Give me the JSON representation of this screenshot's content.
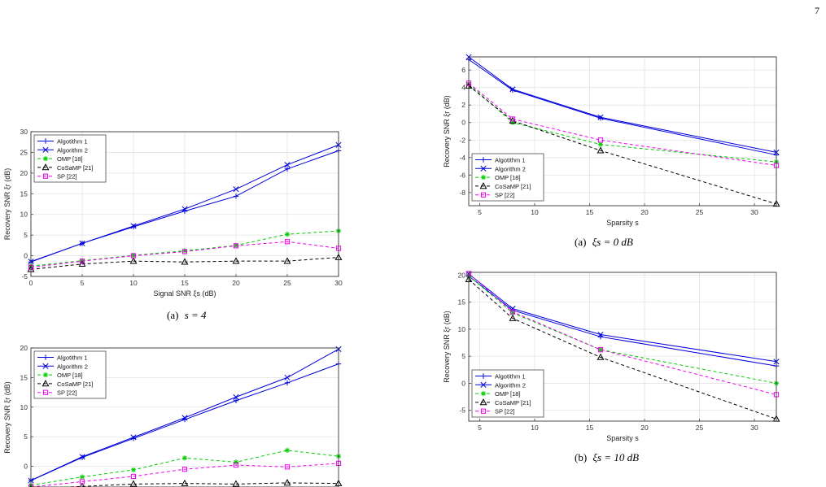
{
  "page_number": "7",
  "chart_data": [
    {
      "id": "a_left",
      "type": "line",
      "xlabel": "Signal SNR ξs (dB)",
      "ylabel": "Recovery SNR ξr (dB)",
      "xlim": [
        0,
        30
      ],
      "ylim": [
        -5,
        30
      ],
      "xticks": [
        0,
        5,
        10,
        15,
        20,
        25,
        30
      ],
      "yticks": [
        -5,
        0,
        5,
        10,
        15,
        20,
        25,
        30
      ],
      "grid": true,
      "legend_position": "top-left",
      "caption_label": "(a)",
      "caption_math": "s = 4",
      "x": [
        0,
        5,
        10,
        15,
        20,
        25,
        30
      ],
      "series": [
        {
          "name": "Algotithm 1",
          "color": "#0000dd",
          "dash": "solid",
          "marker": "plus",
          "values": [
            -1.5,
            3.0,
            7.0,
            10.8,
            14.4,
            21.0,
            25.4
          ]
        },
        {
          "name": "Algorithm 2",
          "color": "#0000dd",
          "dash": "solid",
          "marker": "x",
          "values": [
            -1.4,
            3.0,
            7.2,
            11.3,
            16.1,
            22.0,
            26.8
          ]
        },
        {
          "name": "OMP [18]",
          "color": "#00cc00",
          "dash": "dashed",
          "marker": "star",
          "values": [
            -2.5,
            -1.2,
            0.1,
            1.2,
            2.5,
            5.2,
            6.0
          ]
        },
        {
          "name": "CoSaMP [21]",
          "color": "#000000",
          "dash": "dashed",
          "marker": "triangle",
          "values": [
            -3.3,
            -2.0,
            -1.3,
            -1.5,
            -1.3,
            -1.3,
            -0.4
          ]
        },
        {
          "name": "SP [22]",
          "color": "#ee00ee",
          "dash": "dashed",
          "marker": "square",
          "values": [
            -2.8,
            -1.3,
            0.0,
            1.0,
            2.4,
            3.4,
            1.8
          ]
        }
      ]
    },
    {
      "id": "b_left",
      "type": "line",
      "xlabel": "",
      "ylabel": "Recovery SNR ξr (dB)",
      "xlim": [
        0,
        30
      ],
      "ylim": [
        -3.5,
        20
      ],
      "xticks": [],
      "yticks": [
        0,
        5,
        10,
        15,
        20
      ],
      "grid": true,
      "legend_position": "top-left",
      "caption_label": "",
      "caption_math": "",
      "x": [
        0,
        5,
        10,
        15,
        20,
        25,
        30
      ],
      "series": [
        {
          "name": "Algotithm 1",
          "color": "#0000dd",
          "dash": "solid",
          "marker": "plus",
          "values": [
            -2.4,
            1.5,
            4.7,
            7.9,
            11.1,
            14.1,
            17.3
          ]
        },
        {
          "name": "Algorithm 2",
          "color": "#0000dd",
          "dash": "solid",
          "marker": "x",
          "values": [
            -2.4,
            1.6,
            4.9,
            8.2,
            11.7,
            15.0,
            19.8
          ]
        },
        {
          "name": "OMP [18]",
          "color": "#00cc00",
          "dash": "dashed",
          "marker": "star",
          "values": [
            -3.2,
            -1.8,
            -0.6,
            1.4,
            0.7,
            2.7,
            1.7
          ]
        },
        {
          "name": "CoSaMP [21]",
          "color": "#000000",
          "dash": "dashed",
          "marker": "triangle",
          "values": [
            -3.8,
            -3.4,
            -3.0,
            -2.9,
            -3.0,
            -2.8,
            -2.9
          ]
        },
        {
          "name": "SP [22]",
          "color": "#ee00ee",
          "dash": "dashed",
          "marker": "square",
          "values": [
            -3.5,
            -2.6,
            -1.7,
            -0.5,
            0.2,
            -0.1,
            0.5
          ]
        }
      ]
    },
    {
      "id": "a_right",
      "type": "line",
      "xlabel": "Sparsity s",
      "ylabel": "Recovery SNR ξr (dB)",
      "xlim": [
        4,
        32
      ],
      "ylim": [
        -9.5,
        7.5
      ],
      "xticks": [
        5,
        10,
        15,
        20,
        25,
        30
      ],
      "yticks": [
        -8,
        -6,
        -4,
        -2,
        0,
        2,
        4,
        6
      ],
      "grid": true,
      "legend_position": "bottom-left",
      "caption_label": "(a)",
      "caption_math": "ξs = 0 dB",
      "x": [
        4,
        8,
        16,
        32
      ],
      "series": [
        {
          "name": "Algotithm 1",
          "color": "#0000dd",
          "dash": "solid",
          "marker": "plus",
          "values": [
            7.2,
            3.7,
            0.5,
            -3.7
          ]
        },
        {
          "name": "Algorithm 2",
          "color": "#0000dd",
          "dash": "solid",
          "marker": "x",
          "values": [
            7.5,
            3.8,
            0.6,
            -3.4
          ]
        },
        {
          "name": "OMP [18]",
          "color": "#00cc00",
          "dash": "dashed",
          "marker": "star",
          "values": [
            4.4,
            0.0,
            -2.5,
            -4.5
          ]
        },
        {
          "name": "CoSaMP [21]",
          "color": "#000000",
          "dash": "dashed",
          "marker": "triangle",
          "values": [
            4.2,
            0.2,
            -3.2,
            -9.3
          ]
        },
        {
          "name": "SP [22]",
          "color": "#ee00ee",
          "dash": "dashed",
          "marker": "square",
          "values": [
            4.5,
            0.4,
            -2.0,
            -4.9
          ]
        }
      ]
    },
    {
      "id": "b_right",
      "type": "line",
      "xlabel": "Sparsity s",
      "ylabel": "Recovery SNR ξr (dB)",
      "xlim": [
        4,
        32
      ],
      "ylim": [
        -7,
        20.5
      ],
      "xticks": [
        5,
        10,
        15,
        20,
        25,
        30
      ],
      "yticks": [
        -5,
        0,
        5,
        10,
        15,
        20
      ],
      "grid": true,
      "legend_position": "bottom-left",
      "caption_label": "(b)",
      "caption_math": "ξs = 10 dB",
      "x": [
        4,
        8,
        16,
        32
      ],
      "series": [
        {
          "name": "Algotithm 1",
          "color": "#0000dd",
          "dash": "solid",
          "marker": "plus",
          "values": [
            19.8,
            13.5,
            8.6,
            3.2
          ]
        },
        {
          "name": "Algorithm 2",
          "color": "#0000dd",
          "dash": "solid",
          "marker": "x",
          "values": [
            20.2,
            13.8,
            9.0,
            4.0
          ]
        },
        {
          "name": "OMP [18]",
          "color": "#00cc00",
          "dash": "dashed",
          "marker": "star",
          "values": [
            19.9,
            13.0,
            6.2,
            0.0
          ]
        },
        {
          "name": "CoSaMP [21]",
          "color": "#000000",
          "dash": "dashed",
          "marker": "triangle",
          "values": [
            19.2,
            12.0,
            4.8,
            -6.6
          ]
        },
        {
          "name": "SP [22]",
          "color": "#ee00ee",
          "dash": "dashed",
          "marker": "square",
          "values": [
            20.3,
            13.2,
            6.2,
            -2.1
          ]
        }
      ]
    }
  ]
}
